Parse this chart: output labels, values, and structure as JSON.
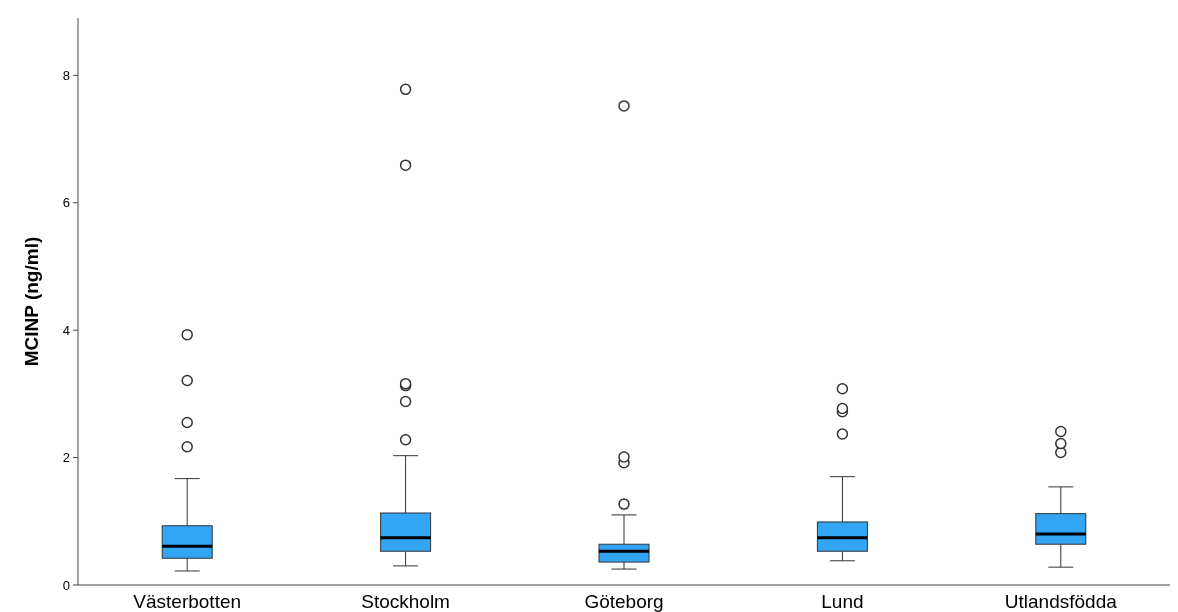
{
  "chart_data": {
    "type": "box",
    "ylabel": "MCINP (ng/ml)",
    "categories": [
      "Västerbotten",
      "Stockholm",
      "Göteborg",
      "Lund",
      "Utlandsfödda"
    ],
    "color": "#33a5f5",
    "ylim": [
      0,
      8.9
    ],
    "yticks": [
      0,
      2,
      4,
      6,
      8
    ],
    "grid": false,
    "boxes": [
      {
        "low": 0.22,
        "q1": 0.42,
        "median": 0.61,
        "q3": 0.93,
        "high": 1.67,
        "outliers": [
          2.17,
          2.55,
          3.21,
          3.93
        ]
      },
      {
        "low": 0.3,
        "q1": 0.53,
        "median": 0.74,
        "q3": 1.13,
        "high": 2.03,
        "outliers": [
          2.28,
          2.88,
          3.13,
          3.16,
          6.59,
          7.78
        ]
      },
      {
        "low": 0.25,
        "q1": 0.36,
        "median": 0.53,
        "q3": 0.64,
        "high": 1.1,
        "outliers": [
          1.27,
          1.92,
          2.01,
          7.52
        ]
      },
      {
        "low": 0.38,
        "q1": 0.53,
        "median": 0.74,
        "q3": 0.99,
        "high": 1.7,
        "outliers": [
          2.37,
          2.72,
          2.77,
          3.08
        ]
      },
      {
        "low": 0.28,
        "q1": 0.64,
        "median": 0.8,
        "q3": 1.12,
        "high": 1.54,
        "outliers": [
          2.08,
          2.22,
          2.41
        ]
      }
    ]
  }
}
